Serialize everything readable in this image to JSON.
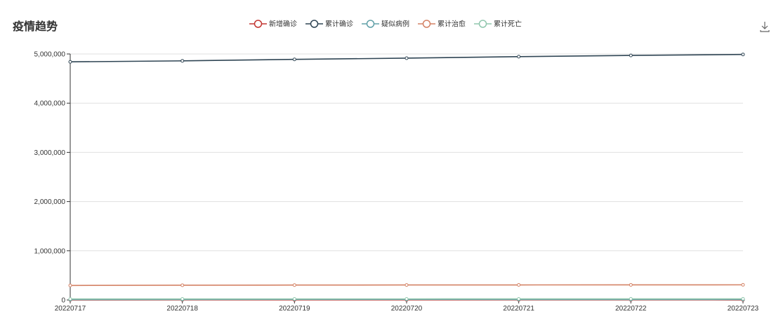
{
  "header": {
    "title": "疫情趋势",
    "download_icon": "download-icon"
  },
  "chart_data": {
    "type": "line",
    "title": "疫情趋势",
    "x": [
      "20220717",
      "20220718",
      "20220719",
      "20220720",
      "20220721",
      "20220722",
      "20220723"
    ],
    "ylim": [
      0,
      5000000
    ],
    "yticks": [
      0,
      1000000,
      2000000,
      3000000,
      4000000,
      5000000
    ],
    "ytick_labels": [
      "0",
      "1,000,000",
      "2,000,000",
      "3,000,000",
      "4,000,000",
      "5,000,000"
    ],
    "grid": true,
    "legend_position": "top-center",
    "series": [
      {
        "name": "新增确诊",
        "color": "#c23531",
        "values": [
          1500,
          1800,
          2100,
          2000,
          1900,
          1700,
          1600
        ]
      },
      {
        "name": "累计确诊",
        "color": "#2f4554",
        "values": [
          4840000,
          4860000,
          4890000,
          4915000,
          4945000,
          4970000,
          4990000
        ]
      },
      {
        "name": "疑似病例",
        "color": "#61a0a8",
        "values": [
          8000,
          9000,
          12000,
          11000,
          10000,
          9500,
          9000
        ]
      },
      {
        "name": "累计治愈",
        "color": "#d48265",
        "values": [
          295000,
          300000,
          303000,
          305000,
          306000,
          307000,
          308000
        ]
      },
      {
        "name": "累计死亡",
        "color": "#91c7ae",
        "values": [
          20000,
          20500,
          21000,
          21500,
          22000,
          22500,
          23000
        ]
      }
    ]
  }
}
